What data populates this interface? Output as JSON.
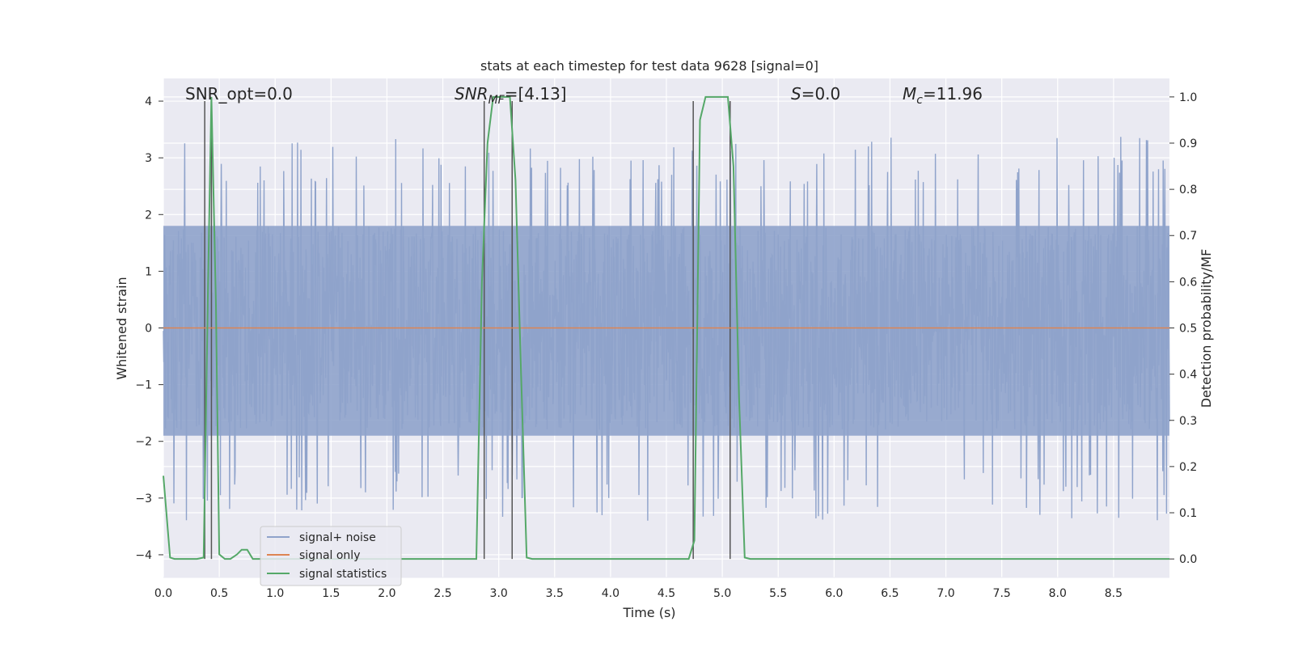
{
  "chart_data": {
    "type": "line",
    "title": "stats at each timestep for test data 9628 [signal=0]",
    "xlabel": "Time (s)",
    "ylabel_left": "Whitened strain",
    "ylabel_right": "Detection probability/MF",
    "xlim": [
      0,
      9.0
    ],
    "ylim_left": [
      -4.4,
      4.4
    ],
    "ylim_right": [
      -0.04,
      1.04
    ],
    "x_ticks": [
      "0.0",
      "0.5",
      "1.0",
      "1.5",
      "2.0",
      "2.5",
      "3.0",
      "3.5",
      "4.0",
      "4.5",
      "5.0",
      "5.5",
      "6.0",
      "6.5",
      "7.0",
      "7.5",
      "8.0",
      "8.5"
    ],
    "y_ticks_left": [
      "4",
      "3",
      "2",
      "1",
      "0",
      "−1",
      "−2",
      "−3",
      "−4"
    ],
    "y_ticks_right": [
      "1.0",
      "0.9",
      "0.8",
      "0.7",
      "0.6",
      "0.5",
      "0.4",
      "0.3",
      "0.2",
      "0.1",
      "0.0"
    ],
    "grid": true,
    "annotations": {
      "snr_opt": "SNR_opt=0.0",
      "snr_mf_label": "SNR",
      "snr_mf_sub": "MF",
      "snr_mf_value": "=[4.13]",
      "s_label": "S",
      "s_value": "=0.0",
      "mc_label": "M",
      "mc_sub": "c",
      "mc_value": "=11.96"
    },
    "vertical_markers_x": [
      0.37,
      0.43,
      2.87,
      3.12,
      4.74,
      5.07
    ],
    "series": [
      {
        "name": "signal+ noise",
        "color": "#8fa3cb",
        "amplitude_envelope": [
          2.5,
          4.0
        ],
        "baseline_band": [
          -1.9,
          1.8
        ]
      },
      {
        "name": "signal only",
        "color": "#dd8452",
        "values": "constant 0"
      },
      {
        "name": "signal statistics",
        "color": "#55a868",
        "axis": "right",
        "x": [
          0.0,
          0.06,
          0.1,
          0.2,
          0.3,
          0.36,
          0.4,
          0.43,
          0.47,
          0.5,
          0.55,
          0.6,
          0.66,
          0.7,
          0.75,
          0.8,
          0.85,
          0.9,
          1.0,
          2.8,
          2.85,
          2.9,
          2.95,
          3.0,
          3.1,
          3.15,
          3.2,
          3.25,
          3.3,
          4.6,
          4.7,
          4.75,
          4.8,
          4.85,
          4.9,
          5.0,
          5.05,
          5.1,
          5.15,
          5.2,
          5.25,
          9.0
        ],
        "y": [
          0.18,
          0.003,
          0.0,
          0.0,
          0.0,
          0.003,
          0.6,
          1.0,
          0.55,
          0.01,
          0.0,
          0.0,
          0.01,
          0.02,
          0.02,
          0.0,
          0.0,
          0.0,
          0.0,
          0.0,
          0.6,
          0.9,
          1.0,
          1.0,
          1.0,
          0.82,
          0.4,
          0.003,
          0.0,
          0.0,
          0.0,
          0.04,
          0.95,
          1.0,
          1.0,
          1.0,
          1.0,
          0.85,
          0.35,
          0.003,
          0.0,
          0.0
        ]
      }
    ],
    "legend": {
      "placement": "lower-left",
      "entries": [
        "signal+ noise",
        "signal only",
        "signal statistics"
      ]
    }
  }
}
